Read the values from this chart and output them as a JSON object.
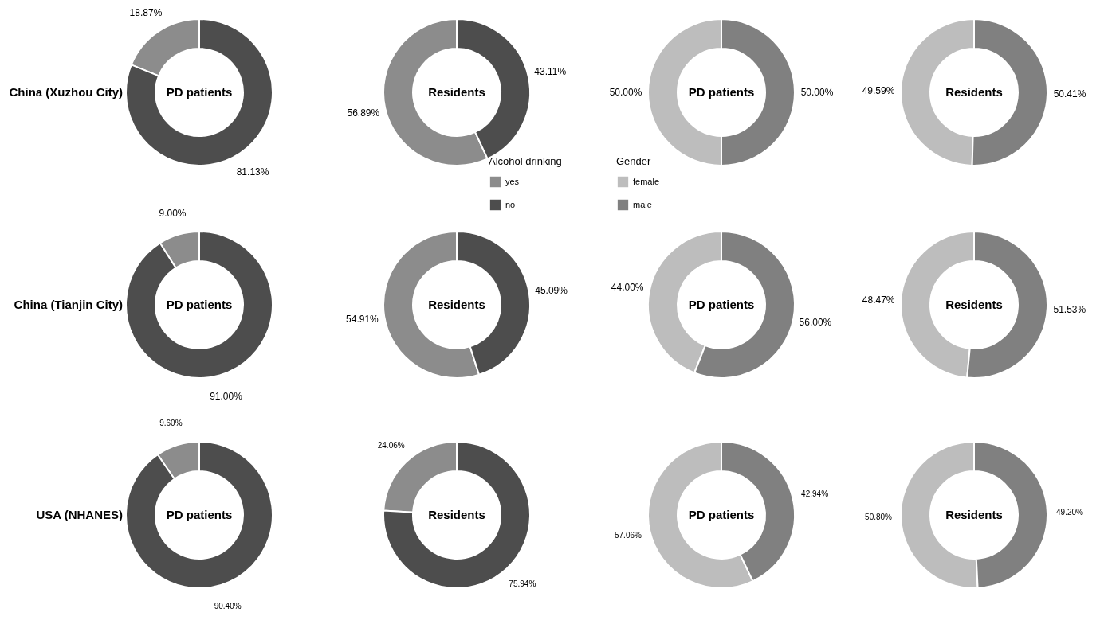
{
  "chart_data": [
    {
      "type": "donut",
      "title": "PD patients",
      "ylabel": "China (Xuzhou City)",
      "categories": [
        null,
        null
      ],
      "values": [
        18.87,
        81.13
      ],
      "colors": [
        "#8c8c8c",
        "#4d4d4d"
      ],
      "value_labels": [
        "18.87%",
        "81.13%"
      ]
    },
    {
      "type": "donut",
      "title": "Residents",
      "categories": [
        "yes",
        "no"
      ],
      "values": [
        56.89,
        43.11
      ],
      "colors": [
        "#8c8c8c",
        "#4d4d4d"
      ],
      "value_labels": [
        "56.89%",
        "43.11%"
      ],
      "legend": "bottom right",
      "legend_title": "Alcohol drinking"
    },
    {
      "type": "donut",
      "title": "PD patients",
      "categories": [
        "female",
        "male"
      ],
      "values": [
        50.0,
        50.0
      ],
      "colors": [
        "#bdbdbd",
        "#808080"
      ],
      "value_labels": [
        "50.00%",
        "50.00%"
      ],
      "legend": "bottom left",
      "legend_title": "Gender"
    },
    {
      "type": "donut",
      "title": "Residents",
      "categories": [
        null,
        null
      ],
      "values": [
        49.59,
        50.41
      ],
      "colors": [
        "#bdbdbd",
        "#808080"
      ],
      "value_labels": [
        "49.59%",
        "50.41%"
      ]
    },
    {
      "type": "donut",
      "title": "PD patients",
      "ylabel": "China (Tianjin City)",
      "categories": [
        null,
        null
      ],
      "values": [
        9.0,
        91.0
      ],
      "colors": [
        "#8c8c8c",
        "#4d4d4d"
      ],
      "value_labels": [
        "9.00%",
        "91.00%"
      ]
    },
    {
      "type": "donut",
      "title": "Residents",
      "categories": [
        null,
        null
      ],
      "values": [
        54.91,
        45.09
      ],
      "colors": [
        "#8c8c8c",
        "#4d4d4d"
      ],
      "value_labels": [
        "54.91%",
        "45.09%"
      ]
    },
    {
      "type": "donut",
      "title": "PD patients",
      "categories": [
        null,
        null
      ],
      "values": [
        44.0,
        56.0
      ],
      "colors": [
        "#bdbdbd",
        "#808080"
      ],
      "value_labels": [
        "44.00%",
        "56.00%"
      ]
    },
    {
      "type": "donut",
      "title": "Residents",
      "categories": [
        null,
        null
      ],
      "values": [
        48.47,
        51.53
      ],
      "colors": [
        "#bdbdbd",
        "#808080"
      ],
      "value_labels": [
        "48.47%",
        "51.53%"
      ]
    },
    {
      "type": "donut",
      "title": "PD patients",
      "ylabel": "USA (NHANES)",
      "categories": [
        null,
        null
      ],
      "values": [
        9.6,
        90.4
      ],
      "colors": [
        "#8c8c8c",
        "#4d4d4d"
      ],
      "value_labels": [
        "9.60%",
        "90.40%"
      ]
    },
    {
      "type": "donut",
      "title": "Residents",
      "categories": [
        null,
        null
      ],
      "values": [
        24.06,
        75.94
      ],
      "colors": [
        "#8c8c8c",
        "#4d4d4d"
      ],
      "value_labels": [
        "24.06%",
        "75.94%"
      ]
    },
    {
      "type": "donut",
      "title": "PD patients",
      "categories": [
        null,
        null
      ],
      "values": [
        57.06,
        42.94
      ],
      "colors": [
        "#bdbdbd",
        "#808080"
      ],
      "value_labels": [
        "57.06%",
        "42.94%"
      ]
    },
    {
      "type": "donut",
      "title": "Residents",
      "categories": [
        null,
        null
      ],
      "values": [
        50.8,
        49.2
      ],
      "colors": [
        "#bdbdbd",
        "#808080"
      ],
      "value_labels": [
        "50.80%",
        "49.20%"
      ]
    }
  ]
}
